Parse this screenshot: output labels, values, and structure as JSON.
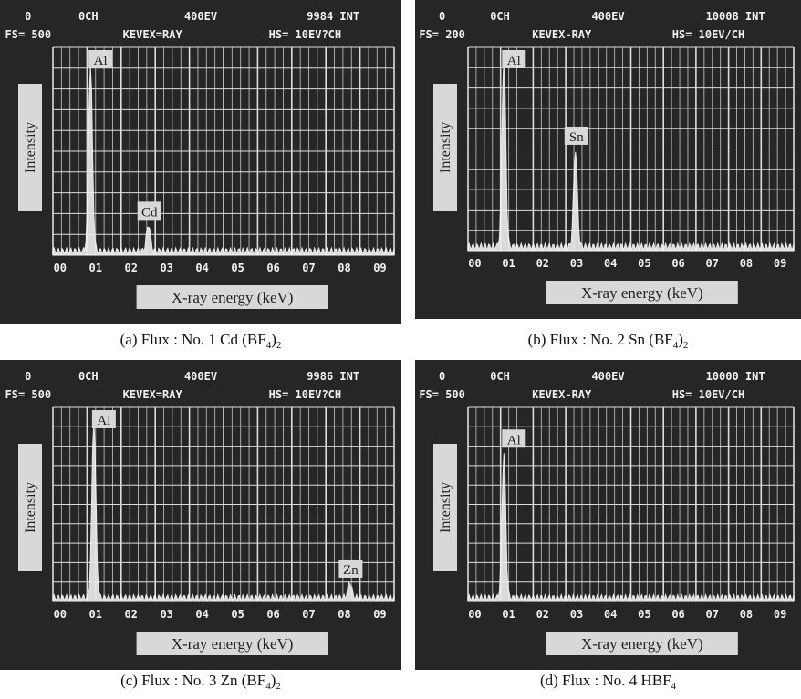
{
  "panels": [
    {
      "header": [
        "0",
        "0CH",
        "400EV",
        "9984 INT"
      ],
      "subheader": [
        "FS= 500",
        "KEVEX=RAY",
        "HS= 10EV?CH"
      ],
      "y_label": "Intensity",
      "x_label": "X-ray energy (keV)",
      "x_ticks": [
        "00",
        "01",
        "02",
        "03",
        "04",
        "05",
        "06",
        "07",
        "08",
        "09"
      ],
      "peaks": [
        "Al",
        "Cd"
      ],
      "caption": [
        "(a) Flux : No. 1 Cd (BF",
        "4",
        ")",
        "2"
      ]
    },
    {
      "header": [
        "0",
        "0CH",
        "400EV",
        "10008 INT"
      ],
      "subheader": [
        "FS= 200",
        "KEVEX-RAY",
        "HS= 10EV/CH"
      ],
      "y_label": "Intensity",
      "x_label": "X-ray energy (keV)",
      "x_ticks": [
        "00",
        "01",
        "02",
        "03",
        "04",
        "05",
        "06",
        "07",
        "08",
        "09"
      ],
      "peaks": [
        "Al",
        "Sn"
      ],
      "caption": [
        "(b) Flux : No. 2 Sn (BF",
        "4",
        ")",
        "2"
      ]
    },
    {
      "header": [
        "0",
        "0CH",
        "400EV",
        "9986 INT"
      ],
      "subheader": [
        "FS= 500",
        "KEVEX=RAY",
        "HS= 10EV?CH"
      ],
      "y_label": "Intensity",
      "x_label": "X-ray energy (keV)",
      "x_ticks": [
        "00",
        "01",
        "02",
        "03",
        "04",
        "05",
        "06",
        "07",
        "08",
        "09"
      ],
      "peaks": [
        "Al",
        "Zn"
      ],
      "caption": [
        "(c) Flux : No. 3 Zn (BF",
        "4",
        ")",
        "2"
      ]
    },
    {
      "header": [
        "0",
        "0CH",
        "400EV",
        "10000 INT"
      ],
      "subheader": [
        "FS= 500",
        "KEVEX-RAY",
        "HS= 10EV/CH"
      ],
      "y_label": "Intensity",
      "x_label": "X-ray energy (keV)",
      "x_ticks": [
        "00",
        "01",
        "02",
        "03",
        "04",
        "05",
        "06",
        "07",
        "08",
        "09"
      ],
      "peaks": [
        "Al"
      ],
      "caption": [
        "(d) Flux : No. 4 HBF",
        "4"
      ]
    }
  ]
}
